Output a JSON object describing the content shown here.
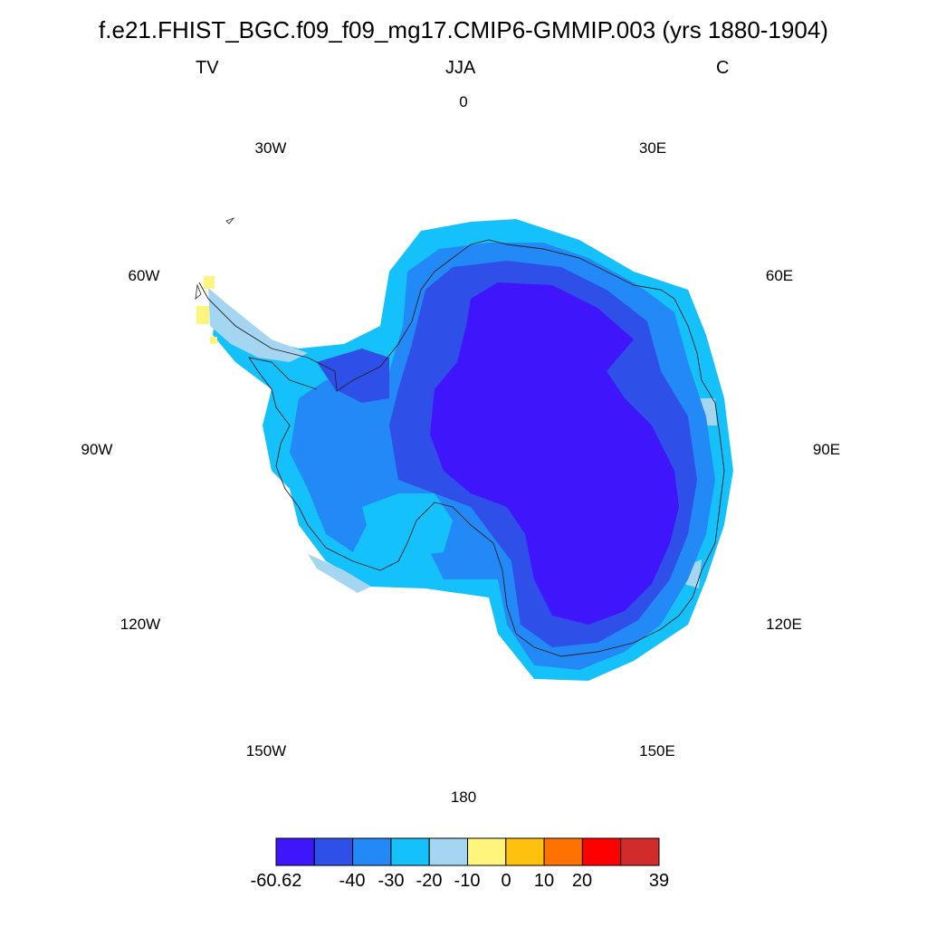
{
  "title": "f.e21.FHIST_BGC.f09_f09_mg17.CMIP6-GMMIP.003 (yrs 1880-1904)",
  "left_label": "TV",
  "center_label": "JJA",
  "right_label": "C",
  "longitude_labels": [
    "0",
    "30E",
    "60E",
    "90E",
    "120E",
    "150E",
    "180",
    "150W",
    "120W",
    "90W",
    "60W",
    "30W"
  ],
  "colorbar": {
    "colors": [
      "#3f15fb",
      "#2e4fe8",
      "#2289f7",
      "#14c1fb",
      "#a4d6f2",
      "#fff57c",
      "#ffc10d",
      "#ff7200",
      "#ff0000",
      "#d22b2b"
    ],
    "tick_labels": [
      "-60.62",
      "-40",
      "-30",
      "-20",
      "-10",
      "0",
      "10",
      "20",
      "39"
    ]
  }
}
